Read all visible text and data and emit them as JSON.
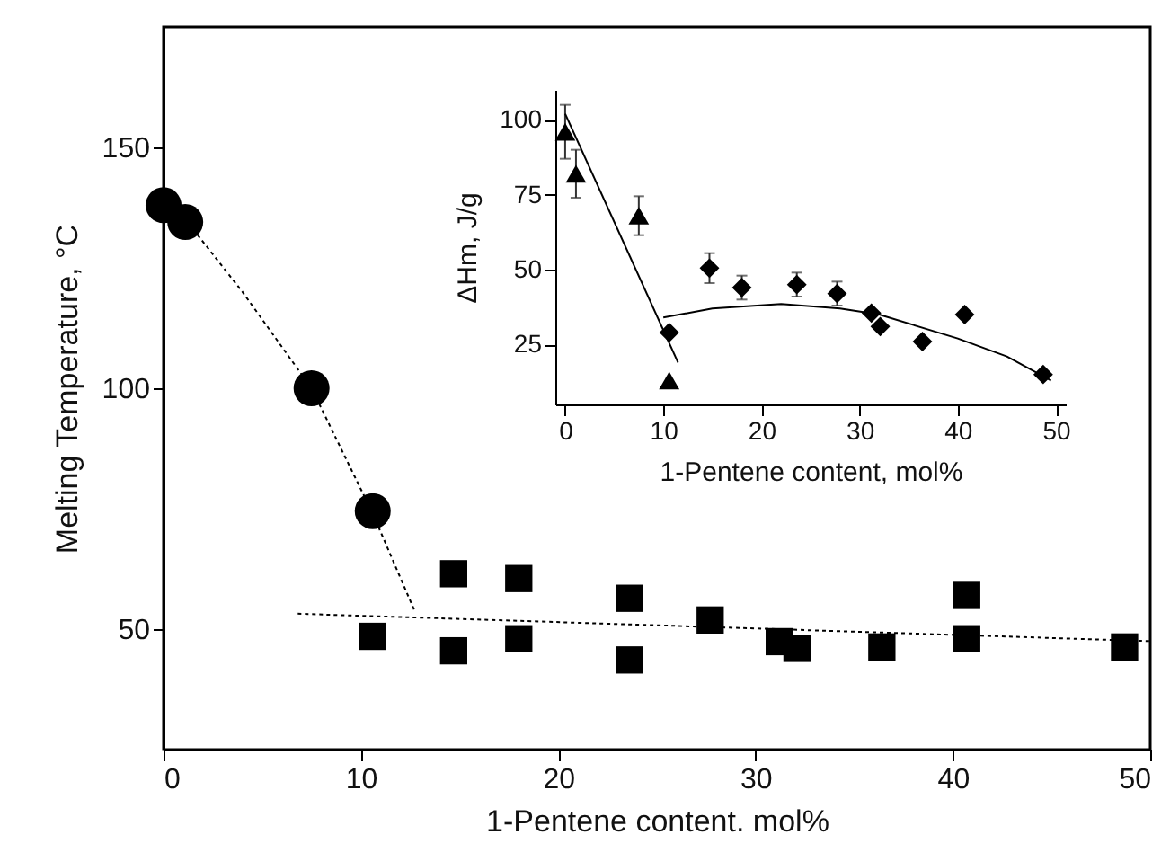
{
  "chart_data": [
    {
      "type": "scatter",
      "xlabel": "1-Pentene content. mol%",
      "ylabel": "Melting Temperature, °C",
      "xlim": [
        0,
        50
      ],
      "ylim": [
        25,
        175
      ],
      "xticks": [
        0,
        10,
        20,
        30,
        40,
        50
      ],
      "yticks": [
        50,
        100,
        150
      ],
      "series": [
        {
          "marker": "circle",
          "color": "#000000",
          "x": [
            0,
            1.1,
            7.5,
            10.6
          ],
          "values": [
            138,
            134.5,
            100,
            74.5
          ]
        },
        {
          "marker": "square",
          "color": "#000000",
          "x": [
            10.6,
            14.7,
            14.7,
            18,
            18,
            23.6,
            23.6,
            27.7,
            31.2,
            32.1,
            36.4,
            40.7,
            40.7,
            48.7
          ],
          "values": [
            48.5,
            45.5,
            61.5,
            60.5,
            48,
            56.4,
            43.6,
            51.9,
            47.4,
            46,
            46.3,
            57,
            48,
            46.3
          ]
        },
        {
          "type": "line",
          "line_style": "dotted",
          "color": "#000000",
          "x": [
            1.5,
            4,
            7.5,
            10.6,
            12.7
          ],
          "values": [
            133,
            120,
            100,
            74,
            54
          ]
        },
        {
          "type": "line",
          "line_style": "dotted",
          "color": "#000000",
          "x": [
            6.8,
            50
          ],
          "values": [
            53.2,
            47.5
          ]
        }
      ]
    },
    {
      "type": "scatter",
      "xlabel": "1-Pentene content, mol%",
      "ylabel": "ΔHm, J/g",
      "xlim": [
        -1,
        51
      ],
      "ylim": [
        5,
        110
      ],
      "xticks": [
        0,
        10,
        20,
        30,
        40,
        50
      ],
      "yticks": [
        25,
        50,
        75,
        100
      ],
      "series": [
        {
          "marker": "triangle",
          "color": "#000000",
          "x": [
            0,
            1.1,
            7.5,
            10.6
          ],
          "values": [
            96,
            82,
            68,
            13
          ],
          "errors": [
            9,
            8,
            6.5,
            null
          ]
        },
        {
          "marker": "diamond",
          "color": "#000000",
          "x": [
            10.6,
            14.7,
            18,
            23.6,
            27.7,
            31.2,
            32.1,
            36.4,
            40.7,
            48.7
          ],
          "values": [
            29,
            50.5,
            44,
            45,
            42,
            35.5,
            31,
            26,
            35,
            15
          ],
          "errors": [
            null,
            5,
            4,
            4,
            4,
            null,
            null,
            null,
            null,
            null
          ]
        },
        {
          "type": "line",
          "line_style": "solid",
          "color": "#000000",
          "x": [
            0,
            11.5
          ],
          "values": [
            102,
            19
          ]
        },
        {
          "type": "line",
          "line_style": "solid",
          "color": "#000000",
          "x": [
            10,
            15,
            22,
            28,
            32,
            40,
            45,
            49.5
          ],
          "values": [
            34,
            37,
            38.5,
            37,
            35,
            27,
            21,
            13
          ]
        }
      ]
    }
  ]
}
